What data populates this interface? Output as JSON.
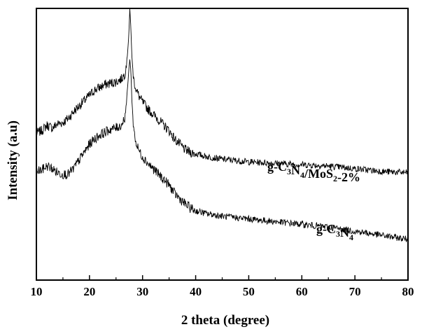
{
  "chart_data": {
    "type": "line",
    "xlabel": "2 theta (degree)",
    "ylabel": "Intensity (a.u)",
    "xlim": [
      10,
      80
    ],
    "x_ticks": [
      "10",
      "20",
      "30",
      "40",
      "50",
      "60",
      "70",
      "80"
    ],
    "y_ticks_labeled": false,
    "grid": false,
    "legend": "none",
    "series": [
      {
        "name": "g-C3N4/MoS2-2%",
        "label_parts": [
          [
            "g-C",
            "n"
          ],
          [
            "3",
            "sub"
          ],
          [
            "N",
            "n"
          ],
          [
            "4",
            "sub"
          ],
          [
            "/MoS",
            "n"
          ],
          [
            "2",
            "sub"
          ],
          [
            "-2%",
            "n"
          ]
        ],
        "color": "#000000",
        "points": [
          [
            10,
            0.54
          ],
          [
            11,
            0.55
          ],
          [
            12,
            0.57
          ],
          [
            13,
            0.56
          ],
          [
            14,
            0.575
          ],
          [
            15,
            0.58
          ],
          [
            16,
            0.595
          ],
          [
            17,
            0.62
          ],
          [
            18,
            0.64
          ],
          [
            19,
            0.66
          ],
          [
            20,
            0.68
          ],
          [
            21,
            0.7
          ],
          [
            22,
            0.71
          ],
          [
            23,
            0.72
          ],
          [
            24,
            0.725
          ],
          [
            25,
            0.73
          ],
          [
            26,
            0.74
          ],
          [
            26.7,
            0.76
          ],
          [
            27.1,
            0.82
          ],
          [
            27.4,
            0.9
          ],
          [
            27.6,
            0.995
          ],
          [
            27.8,
            0.93
          ],
          [
            28.0,
            0.82
          ],
          [
            28.3,
            0.74
          ],
          [
            28.8,
            0.7
          ],
          [
            29.5,
            0.67
          ],
          [
            30,
            0.655
          ],
          [
            31,
            0.63
          ],
          [
            32,
            0.61
          ],
          [
            33,
            0.59
          ],
          [
            34,
            0.57
          ],
          [
            35,
            0.55
          ],
          [
            36,
            0.52
          ],
          [
            37,
            0.5
          ],
          [
            38,
            0.48
          ],
          [
            39,
            0.47
          ],
          [
            40,
            0.465
          ],
          [
            42,
            0.455
          ],
          [
            45,
            0.445
          ],
          [
            50,
            0.435
          ],
          [
            55,
            0.43
          ],
          [
            60,
            0.425
          ],
          [
            65,
            0.42
          ],
          [
            70,
            0.41
          ],
          [
            75,
            0.4
          ],
          [
            80,
            0.395
          ]
        ]
      },
      {
        "name": "g-C3N4",
        "label_parts": [
          [
            "g-C",
            "n"
          ],
          [
            "3",
            "sub"
          ],
          [
            "N",
            "n"
          ],
          [
            "4",
            "sub"
          ]
        ],
        "color": "#000000",
        "points": [
          [
            10,
            0.4
          ],
          [
            11,
            0.405
          ],
          [
            12,
            0.42
          ],
          [
            13,
            0.41
          ],
          [
            14,
            0.395
          ],
          [
            15,
            0.39
          ],
          [
            16,
            0.39
          ],
          [
            17,
            0.41
          ],
          [
            18,
            0.44
          ],
          [
            19,
            0.47
          ],
          [
            20,
            0.5
          ],
          [
            21,
            0.52
          ],
          [
            22,
            0.535
          ],
          [
            23,
            0.545
          ],
          [
            24,
            0.555
          ],
          [
            25,
            0.56
          ],
          [
            26,
            0.57
          ],
          [
            26.7,
            0.6
          ],
          [
            27.1,
            0.69
          ],
          [
            27.4,
            0.77
          ],
          [
            27.6,
            0.815
          ],
          [
            27.8,
            0.77
          ],
          [
            28.0,
            0.66
          ],
          [
            28.3,
            0.56
          ],
          [
            28.8,
            0.5
          ],
          [
            29.5,
            0.47
          ],
          [
            30,
            0.455
          ],
          [
            31,
            0.43
          ],
          [
            32,
            0.41
          ],
          [
            33,
            0.39
          ],
          [
            34,
            0.37
          ],
          [
            35,
            0.35
          ],
          [
            36,
            0.32
          ],
          [
            37,
            0.3
          ],
          [
            38,
            0.28
          ],
          [
            39,
            0.265
          ],
          [
            40,
            0.255
          ],
          [
            42,
            0.245
          ],
          [
            45,
            0.235
          ],
          [
            50,
            0.225
          ],
          [
            55,
            0.215
          ],
          [
            60,
            0.205
          ],
          [
            65,
            0.195
          ],
          [
            70,
            0.18
          ],
          [
            75,
            0.165
          ],
          [
            80,
            0.15
          ]
        ]
      }
    ]
  }
}
